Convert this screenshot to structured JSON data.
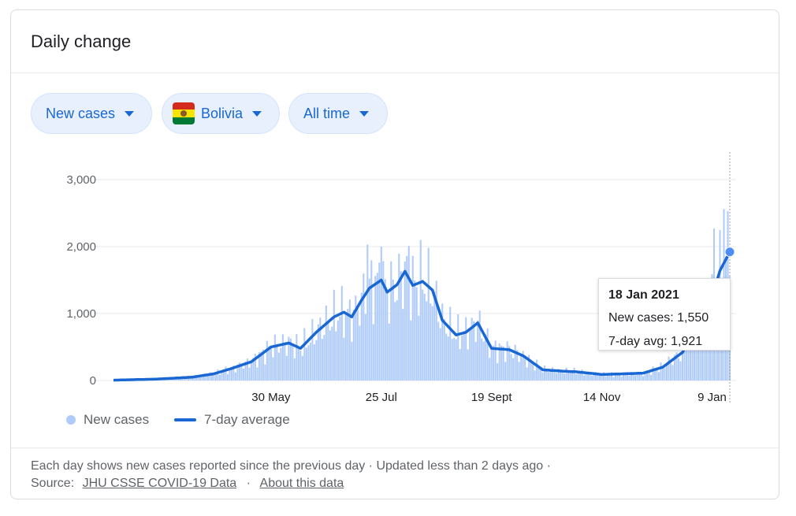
{
  "card": {
    "title": "Daily change"
  },
  "filters": {
    "metric": "New cases",
    "country": "Bolivia",
    "range": "All time"
  },
  "flag_colors": {
    "red": "#d52b1e",
    "yellow": "#f9e300",
    "green": "#007934"
  },
  "colors": {
    "accent": "#1967d2",
    "bar": "#aecbfa",
    "grid": "#e8eaed",
    "muted": "#5f6368"
  },
  "legend": {
    "bars_label": "New cases",
    "line_label": "7-day average"
  },
  "tooltip": {
    "date": "18 Jan 2021",
    "new_cases_label": "New cases",
    "new_cases_value": "1,550",
    "avg_label": "7-day avg",
    "avg_value": "1,921"
  },
  "footer": {
    "line1": "Each day shows new cases reported since the previous day · Updated less than 2 days ago ·",
    "source_label": "Source:",
    "source_link": "JHU CSSE COVID-19 Data",
    "separator": "·",
    "about_link": "About this data"
  },
  "chart_data": {
    "type": "bar",
    "title": "Daily change",
    "x_start": "2020-03-11",
    "x_end": "2021-01-18",
    "ylim": [
      0,
      3000
    ],
    "y_ticks": [
      0,
      1000,
      2000,
      3000
    ],
    "y_tick_labels": [
      "0",
      "1,000",
      "2,000",
      "3,000"
    ],
    "x_tick_labels": [
      "30 May",
      "25 Jul",
      "19 Sept",
      "14 Nov",
      "9 Jan"
    ],
    "x_tick_dates": [
      "2020-05-30",
      "2020-07-25",
      "2020-09-19",
      "2020-11-14",
      "2021-01-09"
    ],
    "grid": true,
    "legend_position": "bottom-left",
    "series": [
      {
        "name": "New cases",
        "type": "bar"
      },
      {
        "name": "7-day average",
        "type": "line"
      }
    ],
    "seven_day_avg_keypoints": [
      [
        "2020-03-11",
        5
      ],
      [
        "2020-04-01",
        20
      ],
      [
        "2020-04-20",
        50
      ],
      [
        "2020-05-01",
        100
      ],
      [
        "2020-05-10",
        180
      ],
      [
        "2020-05-20",
        280
      ],
      [
        "2020-05-30",
        500
      ],
      [
        "2020-06-08",
        560
      ],
      [
        "2020-06-14",
        480
      ],
      [
        "2020-06-22",
        720
      ],
      [
        "2020-07-01",
        950
      ],
      [
        "2020-07-06",
        1020
      ],
      [
        "2020-07-10",
        950
      ],
      [
        "2020-07-15",
        1200
      ],
      [
        "2020-07-19",
        1380
      ],
      [
        "2020-07-25",
        1500
      ],
      [
        "2020-07-28",
        1320
      ],
      [
        "2020-08-02",
        1430
      ],
      [
        "2020-08-06",
        1630
      ],
      [
        "2020-08-10",
        1420
      ],
      [
        "2020-08-15",
        1480
      ],
      [
        "2020-08-20",
        1350
      ],
      [
        "2020-08-25",
        900
      ],
      [
        "2020-09-01",
        680
      ],
      [
        "2020-09-06",
        720
      ],
      [
        "2020-09-12",
        860
      ],
      [
        "2020-09-19",
        480
      ],
      [
        "2020-09-28",
        460
      ],
      [
        "2020-10-05",
        370
      ],
      [
        "2020-10-15",
        160
      ],
      [
        "2020-10-25",
        140
      ],
      [
        "2020-11-01",
        130
      ],
      [
        "2020-11-14",
        90
      ],
      [
        "2020-11-25",
        100
      ],
      [
        "2020-12-05",
        110
      ],
      [
        "2020-12-15",
        200
      ],
      [
        "2020-12-25",
        420
      ],
      [
        "2021-01-01",
        800
      ],
      [
        "2021-01-09",
        1250
      ],
      [
        "2021-01-13",
        1640
      ],
      [
        "2021-01-18",
        1921
      ]
    ],
    "peaks": [
      [
        "2020-07-18",
        2030
      ],
      [
        "2020-07-25",
        2000
      ],
      [
        "2020-08-08",
        2010
      ],
      [
        "2021-01-10",
        2270
      ],
      [
        "2021-01-15",
        2560
      ]
    ],
    "highlight": {
      "date": "2021-01-18",
      "new_cases": 1550,
      "seven_day_avg": 1921
    }
  }
}
